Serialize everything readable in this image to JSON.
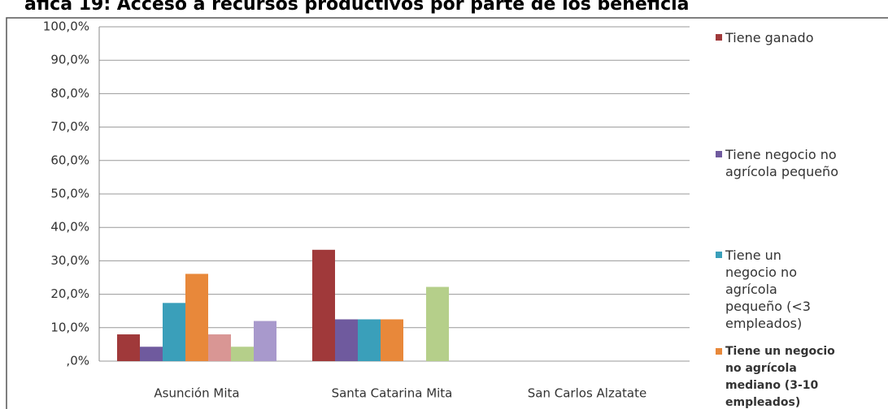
{
  "chart_data": {
    "type": "bar",
    "title": "áfica 19: Acceso a recursos productivos por parte de los beneficia",
    "categories": [
      "Asunción Mita",
      "Santa Catarina Mita",
      "San Carlos Alzatate"
    ],
    "series": [
      {
        "name": "Tiene ganado",
        "color": "#a0393a",
        "values": [
          8.0,
          33.3,
          0
        ]
      },
      {
        "name": "Tiene negocio no agrícola pequeño",
        "color": "#6f5a9e",
        "values": [
          4.3,
          12.5,
          0
        ]
      },
      {
        "name": "Tiene un negocio no agrícola pequeño (<3 empleados)",
        "color": "#3a9fba",
        "values": [
          17.4,
          12.5,
          0
        ]
      },
      {
        "name": "Tiene un negocio no agrícola mediano (3-10 empleados)",
        "color": "#e8883a",
        "values": [
          26.1,
          12.5,
          0
        ]
      },
      {
        "color": "#d99694",
        "values": [
          8.0,
          0,
          0
        ]
      },
      {
        "color": "#b5cf8a",
        "values": [
          4.3,
          22.2,
          0
        ]
      },
      {
        "color": "#a899cc",
        "values": [
          12.0,
          0,
          0
        ]
      }
    ],
    "ylim": [
      0,
      100
    ],
    "yticks": [
      {
        "value": 0,
        "label": ",0%"
      },
      {
        "value": 10,
        "label": "10,0%"
      },
      {
        "value": 20,
        "label": "20,0%"
      },
      {
        "value": 30,
        "label": "30,0%"
      },
      {
        "value": 40,
        "label": "40,0%"
      },
      {
        "value": 50,
        "label": "50,0%"
      },
      {
        "value": 60,
        "label": "60,0%"
      },
      {
        "value": 70,
        "label": "70,0%"
      },
      {
        "value": 80,
        "label": "80,0%"
      },
      {
        "value": 90,
        "label": "90,0%"
      },
      {
        "value": 100,
        "label": "100,0%"
      }
    ],
    "grid": true
  }
}
